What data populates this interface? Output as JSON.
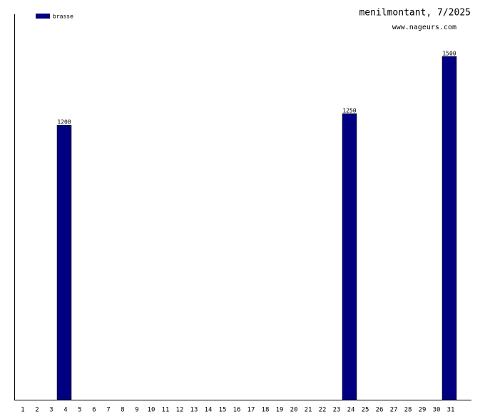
{
  "chart_data": {
    "type": "bar",
    "title": "menilmontant, 7/2025",
    "subtitle": "www.nageurs.com",
    "categories": [
      "1",
      "2",
      "3",
      "4",
      "5",
      "6",
      "7",
      "8",
      "9",
      "10",
      "11",
      "12",
      "13",
      "14",
      "15",
      "16",
      "17",
      "18",
      "19",
      "20",
      "21",
      "22",
      "23",
      "24",
      "25",
      "26",
      "27",
      "28",
      "29",
      "30",
      "31"
    ],
    "series": [
      {
        "name": "brasse",
        "color": "#000080",
        "values": [
          null,
          null,
          null,
          1200,
          null,
          null,
          null,
          null,
          null,
          null,
          null,
          null,
          null,
          null,
          null,
          null,
          null,
          null,
          null,
          null,
          null,
          null,
          null,
          1250,
          null,
          null,
          null,
          null,
          null,
          null,
          1500
        ]
      }
    ],
    "ylim": [
      0,
      1684
    ],
    "grid": false,
    "legend": "top-left"
  }
}
